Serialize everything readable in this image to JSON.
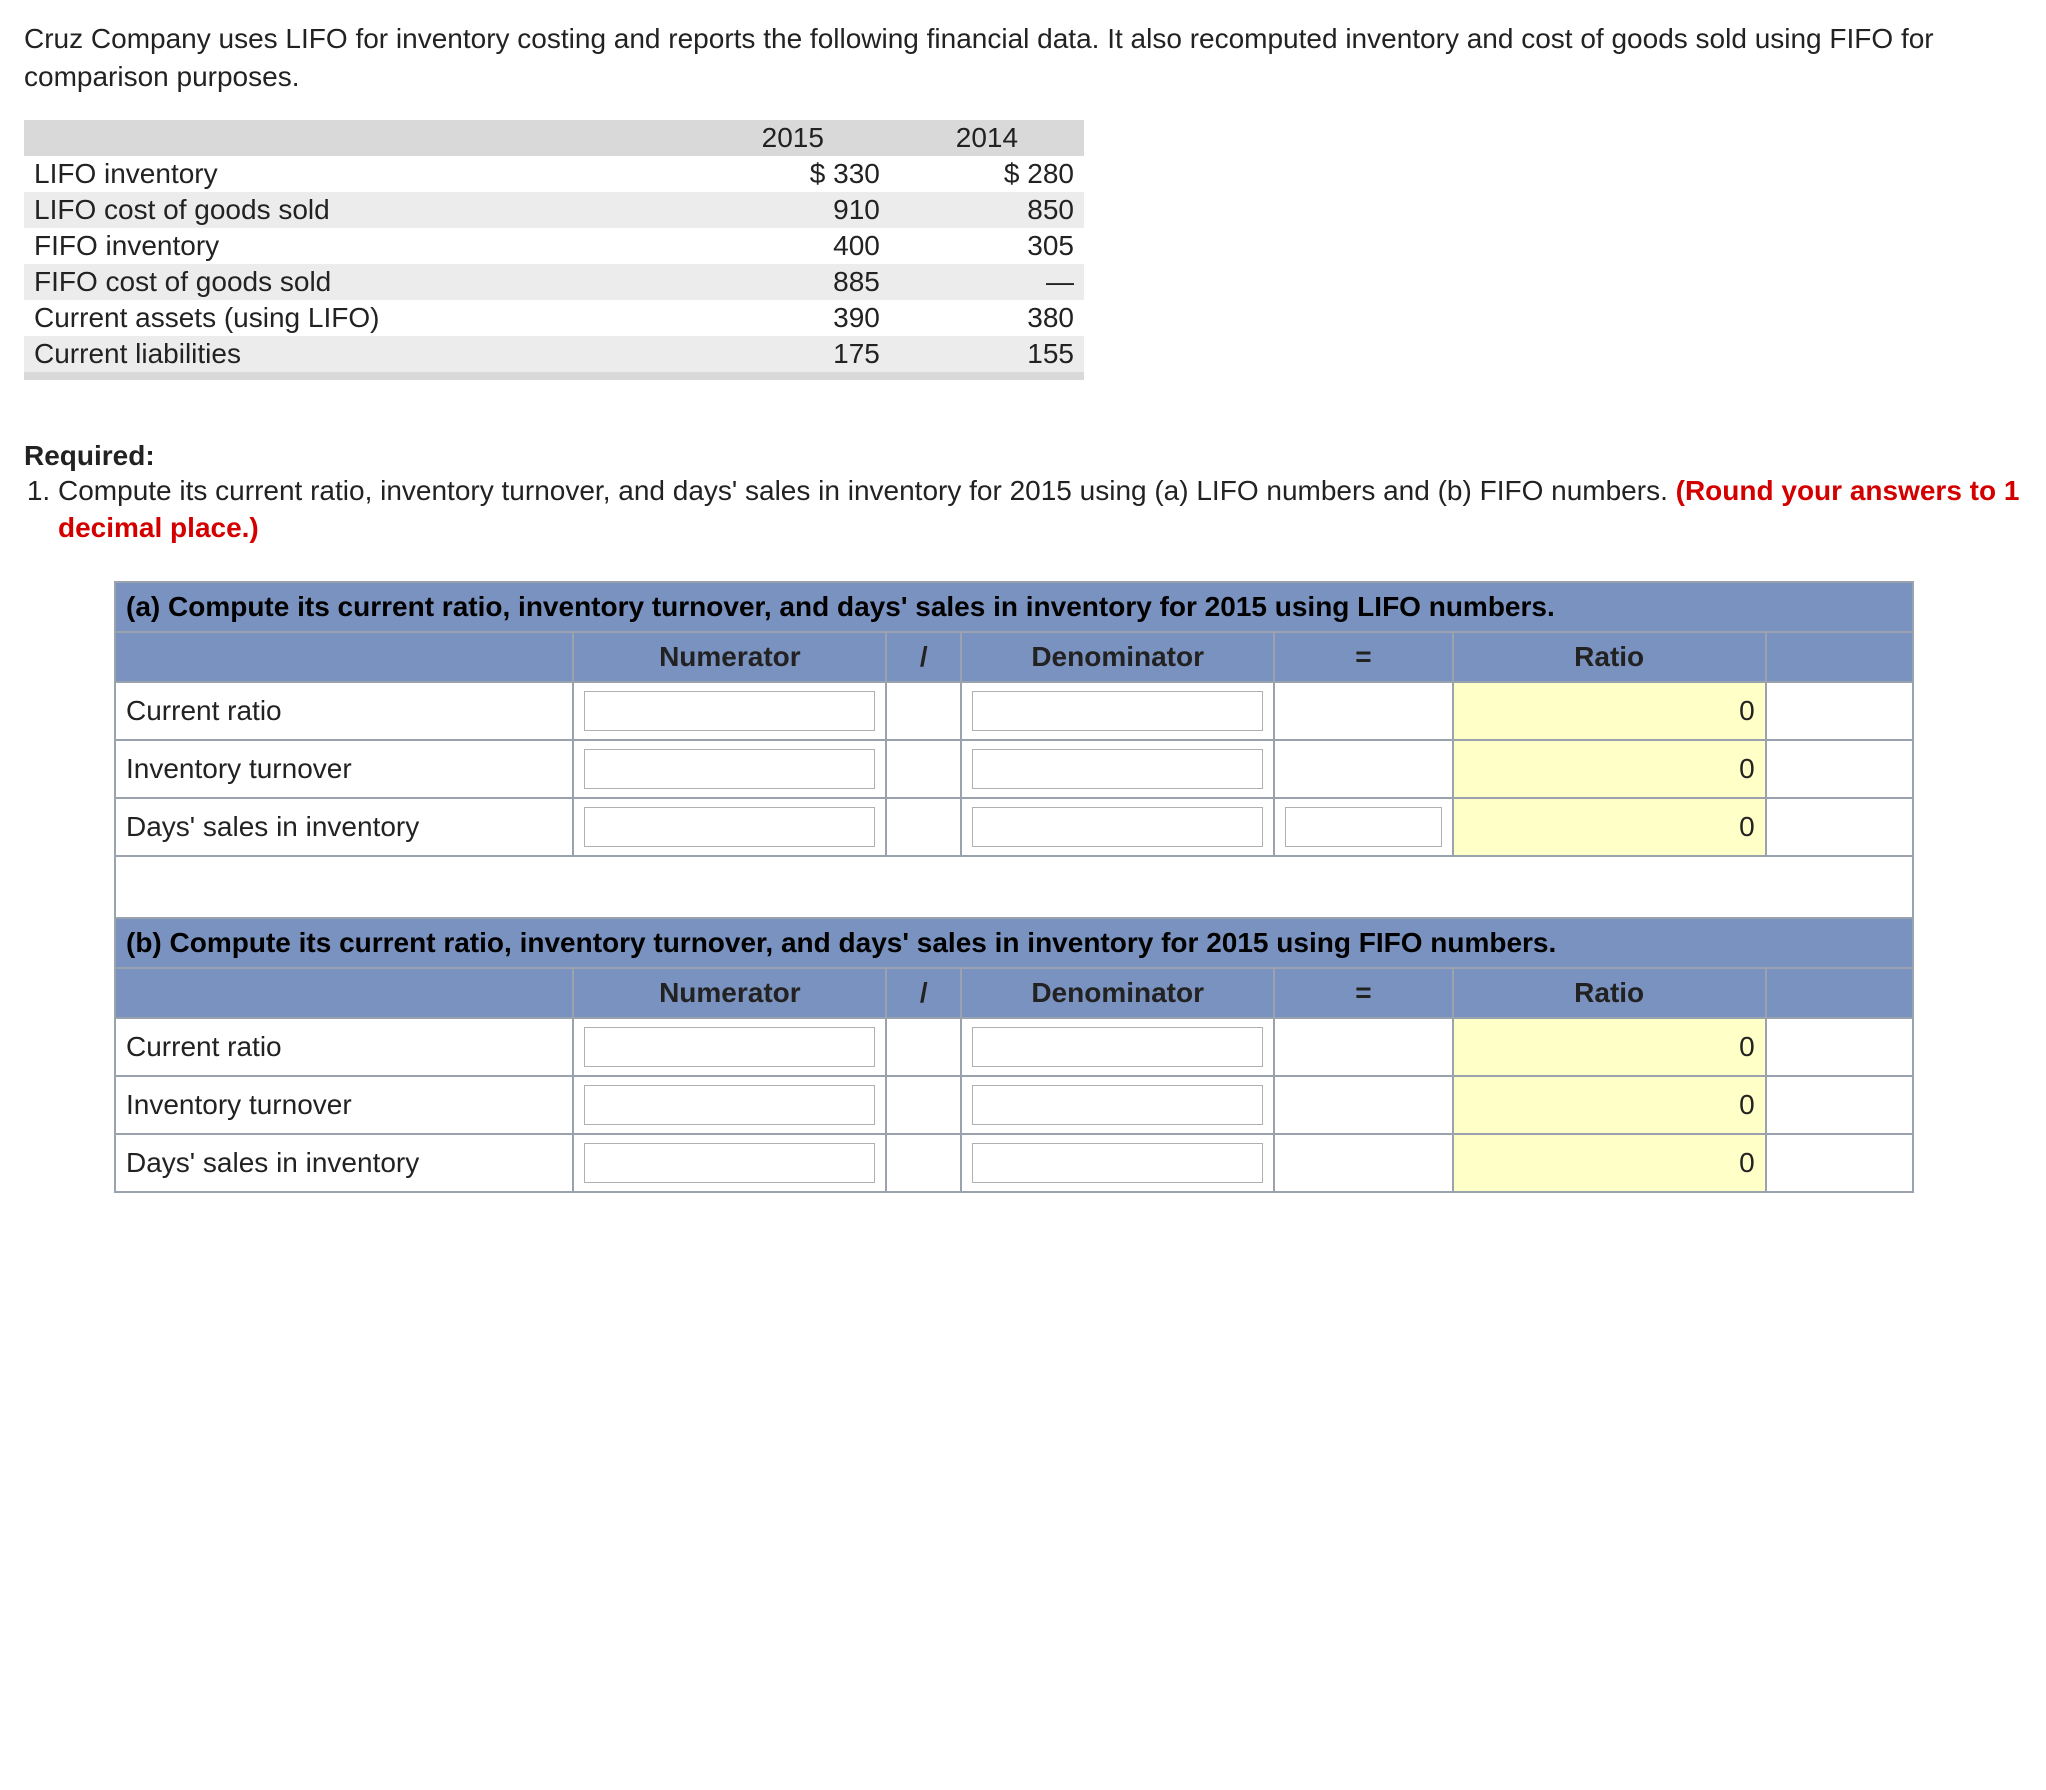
{
  "intro": "Cruz Company uses LIFO for inventory costing and reports the following financial data. It also recomputed inventory and cost of goods sold using FIFO for comparison purposes.",
  "fin_table": {
    "col_headers": [
      "2015",
      "2014"
    ],
    "rows": [
      {
        "label": "LIFO inventory",
        "v2015": "$ 330",
        "v2014": "$ 280",
        "band": false
      },
      {
        "label": "LIFO cost of goods sold",
        "v2015": "910",
        "v2014": "850",
        "band": true
      },
      {
        "label": "FIFO inventory",
        "v2015": "400",
        "v2014": "305",
        "band": false
      },
      {
        "label": "FIFO cost of goods sold",
        "v2015": "885",
        "v2014": "—",
        "band": true
      },
      {
        "label": "Current assets (using LIFO)",
        "v2015": "390",
        "v2014": "380",
        "band": false
      },
      {
        "label": "Current liabilities",
        "v2015": "175",
        "v2014": "155",
        "band": true
      }
    ],
    "header_bg": "#d9d9d9",
    "band_bg": "#ececec"
  },
  "required": {
    "heading": "Required:",
    "item1_a": "Compute its current ratio, inventory turnover, and days' sales in inventory for 2015 using (a) LIFO numbers and (b) FIFO numbers. ",
    "item1_red": "(Round your answers to 1 decimal place.)"
  },
  "worksheet": {
    "header_bg": "#7a92bf",
    "result_bg": "#ffffc8",
    "border_color": "#9aa3ad",
    "col_labels": {
      "numerator": "Numerator",
      "slash": "/",
      "denominator": "Denominator",
      "equals": "=",
      "ratio": "Ratio"
    },
    "sections": {
      "a": {
        "title": "(a) Compute its current ratio, inventory turnover, and days' sales in inventory for 2015 using LIFO numbers.",
        "rows": [
          {
            "label": "Current ratio",
            "has_eq_input": false,
            "ratio": "0"
          },
          {
            "label": "Inventory turnover",
            "has_eq_input": false,
            "ratio": "0"
          },
          {
            "label": "Days' sales in inventory",
            "has_eq_input": true,
            "ratio": "0"
          }
        ]
      },
      "b": {
        "title": "(b) Compute its current ratio, inventory turnover, and days' sales in inventory for 2015 using FIFO numbers.",
        "rows": [
          {
            "label": "Current ratio",
            "has_eq_input": false,
            "ratio": "0"
          },
          {
            "label": "Inventory turnover",
            "has_eq_input": false,
            "ratio": "0"
          },
          {
            "label": "Days' sales in inventory",
            "has_eq_input": false,
            "ratio": "0"
          }
        ]
      }
    }
  }
}
